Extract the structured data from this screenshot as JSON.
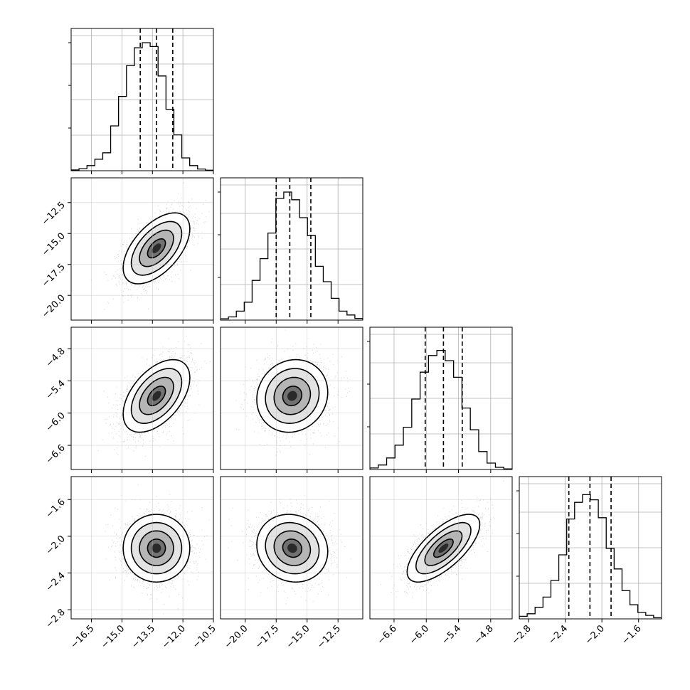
{
  "chart_data": {
    "type": "corner",
    "grid": true,
    "parameters": [
      {
        "range": [
          -17.5,
          -10.5
        ],
        "quantiles": [
          -14.1,
          -13.3,
          -12.5
        ],
        "hist": [
          0.006,
          0.016,
          0.04,
          0.09,
          0.14,
          0.35,
          0.58,
          0.82,
          0.96,
          1.0,
          0.97,
          0.74,
          0.48,
          0.28,
          0.1,
          0.04,
          0.013,
          0.004
        ],
        "ticks": [
          -16.5,
          -15.0,
          -13.5,
          -12.0,
          -10.5
        ],
        "tick_labels": [
          "−16.5",
          "−15.0",
          "−13.5",
          "−12.0",
          "−10.5"
        ],
        "mean": -13.3,
        "sigma": 0.8
      },
      {
        "range": [
          -22.0,
          -10.5
        ],
        "quantiles": [
          -17.5,
          -16.4,
          -14.7
        ],
        "hist": [
          0.01,
          0.025,
          0.07,
          0.14,
          0.31,
          0.48,
          0.68,
          0.95,
          1.0,
          0.94,
          0.8,
          0.66,
          0.42,
          0.3,
          0.17,
          0.07,
          0.04,
          0.013
        ],
        "ticks": [
          -20.0,
          -17.5,
          -15.0,
          -12.5
        ],
        "tick_labels": [
          "−20.0",
          "−17.5",
          "−15.0",
          "−12.5"
        ],
        "mean": -16.2,
        "sigma": 1.4
      },
      {
        "range": [
          -7.05,
          -4.4
        ],
        "quantiles": [
          -6.02,
          -5.68,
          -5.33
        ],
        "hist": [
          0.012,
          0.035,
          0.09,
          0.19,
          0.33,
          0.55,
          0.76,
          0.89,
          0.93,
          0.85,
          0.72,
          0.48,
          0.31,
          0.14,
          0.05,
          0.017,
          0.005
        ],
        "ticks": [
          -6.6,
          -6.0,
          -5.4,
          -4.8
        ],
        "tick_labels": [
          "−6.6",
          "−6.0",
          "−5.4",
          "−4.8"
        ],
        "mean": -5.68,
        "sigma": 0.33
      },
      {
        "range": [
          -2.9,
          -1.35
        ],
        "quantiles": [
          -2.36,
          -2.13,
          -1.9
        ],
        "hist": [
          0.02,
          0.04,
          0.09,
          0.17,
          0.3,
          0.5,
          0.78,
          0.91,
          0.97,
          0.93,
          0.79,
          0.55,
          0.39,
          0.22,
          0.11,
          0.05,
          0.027,
          0.009
        ],
        "ticks": [
          -2.8,
          -2.4,
          -2.0,
          -1.6
        ],
        "tick_labels": [
          "−2.8",
          "−2.4",
          "−2.0",
          "−1.6"
        ],
        "mean": -2.13,
        "sigma": 0.18
      }
    ],
    "correlations": {
      "1-0": 0.55,
      "2-0": 0.5,
      "2-1": 0.1,
      "3-0": 0.0,
      "3-1": -0.1,
      "3-2": 0.7
    },
    "colors": {
      "histogram": "#000000",
      "contour": "#000000",
      "scatter": "#555555",
      "grid": "#b0b0b0"
    }
  }
}
